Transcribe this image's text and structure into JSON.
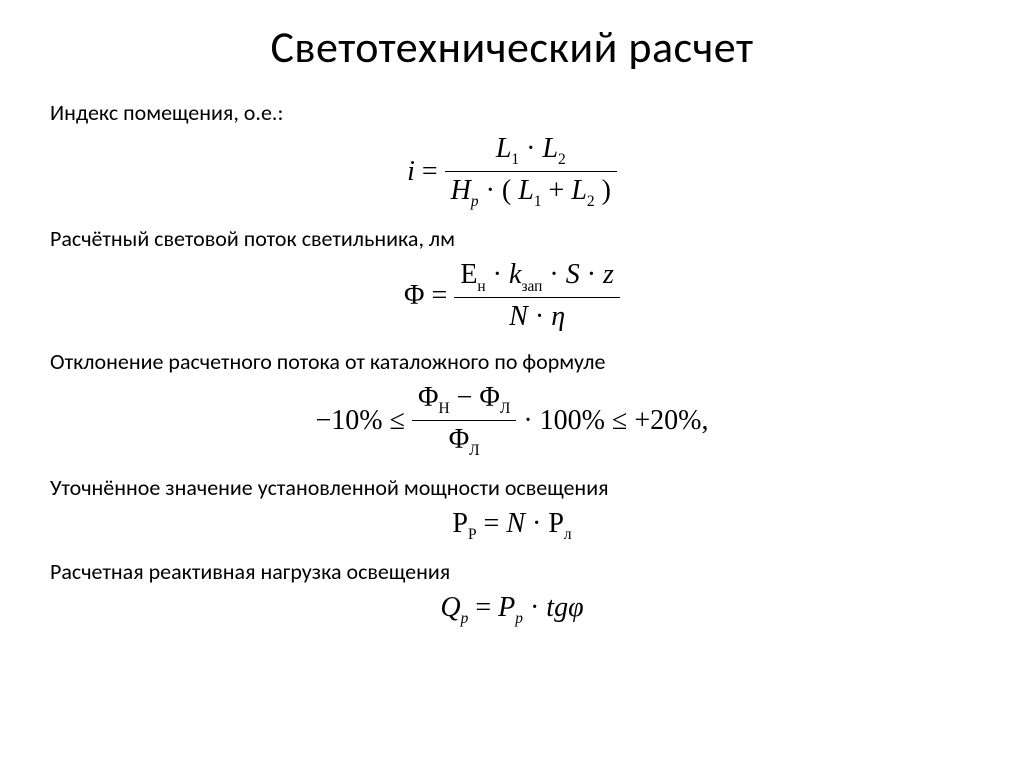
{
  "title": "Светотехнический расчет",
  "sections": {
    "index": {
      "label": "Индекс помещения, о.е.:",
      "formula": {
        "lhs_var": "i",
        "equals": "=",
        "num_L1": "L",
        "num_L1_sub": "1",
        "dot": "·",
        "num_L2": "L",
        "num_L2_sub": "2",
        "den_H": "H",
        "den_H_sub": "р",
        "den_open": "(",
        "den_L1": "L",
        "den_L1_sub": "1",
        "plus": "+",
        "den_L2": "L",
        "den_L2_sub": "2",
        "den_close": ")"
      }
    },
    "flux": {
      "label": "Расчётный световой поток светильника, лм",
      "formula": {
        "Phi": "Φ",
        "equals": "=",
        "E": "E",
        "E_sub": "н",
        "dot": "·",
        "k": "k",
        "k_sub": "зап",
        "S": "S",
        "z": "z",
        "N": "N",
        "eta": "η"
      }
    },
    "deviation": {
      "label": "Отклонение расчетного потока от каталожного по формуле",
      "formula": {
        "lower": "−10%",
        "le1": "≤",
        "Phi": "Φ",
        "Phi_N_sub": "Н",
        "minus": "−",
        "Phi_L_sub": "Л",
        "dot": "·",
        "hundred": "100%",
        "le2": "≤",
        "upper": "+20%,"
      }
    },
    "power": {
      "label": "Уточнённое значение установленной мощности освещения",
      "formula": {
        "P": "P",
        "P_sub": "Р",
        "equals": "=",
        "N": "N",
        "dot": "·",
        "Pl": "P",
        "Pl_sub": "л"
      }
    },
    "reactive": {
      "label": "Расчетная реактивная нагрузка освещения",
      "formula": {
        "Q": "Q",
        "Q_sub": "p",
        "equals": "=",
        "P": "P",
        "P_sub": "p",
        "dot": "·",
        "tg": "tg",
        "phi": "φ"
      }
    }
  },
  "style": {
    "background": "#ffffff",
    "text_color": "#000000",
    "title_fontsize": 44,
    "label_fontsize": 22,
    "formula_fontsize": 28,
    "font_family_label": "Calibri",
    "font_family_formula": "Cambria Math"
  }
}
